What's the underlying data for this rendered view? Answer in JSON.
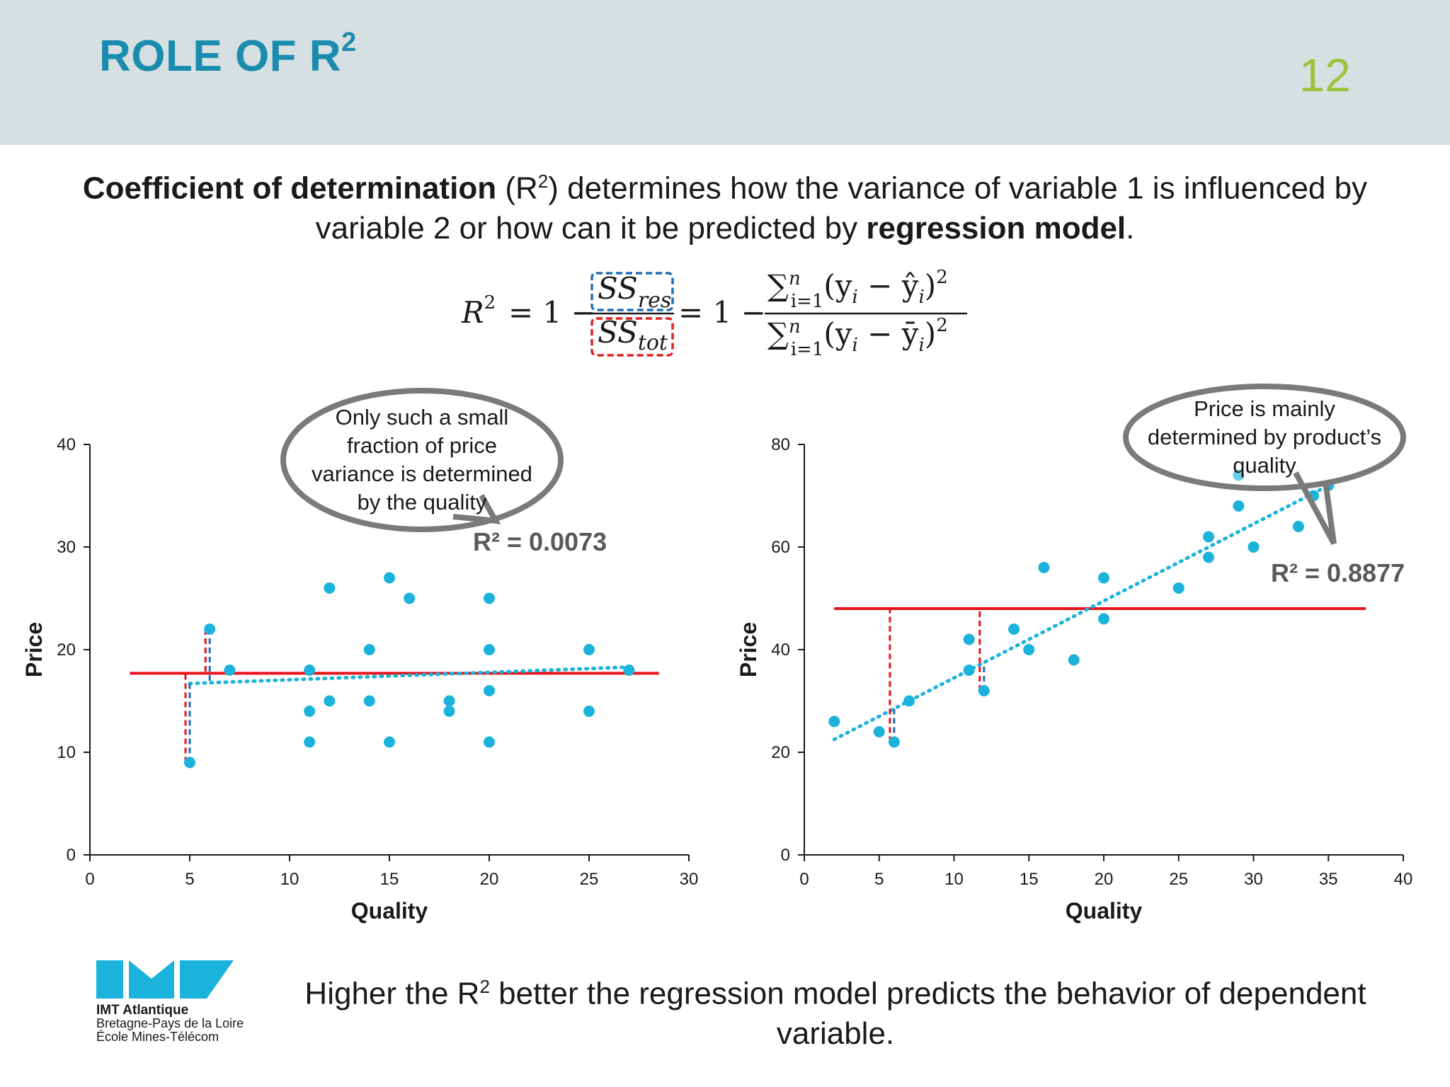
{
  "header": {
    "title": "ROLE OF R",
    "title_sup": "2",
    "slide_number": "12"
  },
  "intro": {
    "bold1": "Coefficient of determination",
    "text1": " (R",
    "sup": "2",
    "text2": ") determines how the variance of variable 1 is influenced by variable 2 or how can it be predicted by ",
    "bold2": "regression model",
    "text3": "."
  },
  "formula": {
    "lhs": "R",
    "lhs_sup": "2",
    "eq1": "= 1 −",
    "num1": "SS",
    "num1_sub": "res",
    "den1": "SS",
    "den1_sub": "tot",
    "eq2": "= 1 −",
    "num2": "∑",
    "num2_sup": "n",
    "num2_sub": "i=1",
    "num2_body": "(y",
    "num2_i": "i",
    "num2_minus": " − ŷ",
    "num2_i2": "i",
    "num2_close": ")",
    "num2_pow": "2",
    "den2": "∑",
    "den2_sup": "n",
    "den2_sub": "i=1",
    "den2_body": "(y",
    "den2_i": "i",
    "den2_minus": " − ȳ",
    "den2_i2": "i",
    "den2_close": ")",
    "den2_pow": "2",
    "colors": {
      "res": "#1f6fb5",
      "tot": "#e02020"
    }
  },
  "colors": {
    "points": "#1bb3dc",
    "mean_line": "#e8141c",
    "trend": "#1bb3dc",
    "res_dash": "#1f6fb5",
    "tot_dash": "#e8141c",
    "bubble_stroke": "#7a7a7a",
    "r2_text": "#595959"
  },
  "chart_data": [
    {
      "type": "scatter",
      "xlabel": "Quality",
      "ylabel": "Price",
      "xlim": [
        0,
        30
      ],
      "ylim": [
        0,
        40
      ],
      "xticks": [
        0,
        5,
        10,
        15,
        20,
        25,
        30
      ],
      "yticks": [
        0,
        10,
        20,
        30,
        40
      ],
      "points": [
        [
          5,
          9
        ],
        [
          6,
          22
        ],
        [
          7,
          18
        ],
        [
          11,
          18
        ],
        [
          11,
          14
        ],
        [
          11,
          11
        ],
        [
          12,
          26
        ],
        [
          12,
          15
        ],
        [
          14,
          20
        ],
        [
          14,
          15
        ],
        [
          15,
          27
        ],
        [
          15,
          11
        ],
        [
          16,
          25
        ],
        [
          18,
          15
        ],
        [
          18,
          14
        ],
        [
          20,
          25
        ],
        [
          20,
          20
        ],
        [
          20,
          16
        ],
        [
          20,
          11
        ],
        [
          25,
          20
        ],
        [
          25,
          14
        ],
        [
          27,
          18
        ]
      ],
      "mean": 17.7,
      "mean_x_range": [
        2,
        28.5
      ],
      "trend": {
        "x1": 5,
        "y1": 16.7,
        "x2": 27,
        "y2": 18.3
      },
      "r2_label": "R² = 0.0073",
      "residual_markers": [
        {
          "x": 5,
          "y": 9,
          "mean": 17.7,
          "fit": 16.7
        },
        {
          "x": 6,
          "y": 22,
          "mean": 17.7,
          "fit": 16.8
        }
      ],
      "callout": [
        "Only such a small",
        "fraction of price",
        "variance is determined",
        "by the quality"
      ]
    },
    {
      "type": "scatter",
      "xlabel": "Quality",
      "ylabel": "Price",
      "xlim": [
        0,
        40
      ],
      "ylim": [
        0,
        80
      ],
      "xticks": [
        0,
        5,
        10,
        15,
        20,
        25,
        30,
        35,
        40
      ],
      "yticks": [
        0,
        20,
        40,
        60,
        80
      ],
      "points": [
        [
          2,
          26
        ],
        [
          5,
          24
        ],
        [
          6,
          22
        ],
        [
          7,
          30
        ],
        [
          11,
          42
        ],
        [
          11,
          36
        ],
        [
          12,
          32
        ],
        [
          14,
          44
        ],
        [
          15,
          40
        ],
        [
          16,
          56
        ],
        [
          18,
          38
        ],
        [
          20,
          54
        ],
        [
          20,
          46
        ],
        [
          25,
          52
        ],
        [
          27,
          62
        ],
        [
          27,
          58
        ],
        [
          29,
          74
        ],
        [
          29,
          68
        ],
        [
          30,
          60
        ],
        [
          33,
          64
        ],
        [
          34,
          70
        ],
        [
          35,
          72
        ]
      ],
      "mean": 48,
      "mean_x_range": [
        2,
        37.5
      ],
      "trend": {
        "x1": 2,
        "y1": 22.5,
        "x2": 35,
        "y2": 72
      },
      "r2_label": "R² = 0.8877",
      "residual_markers": [
        {
          "x": 6,
          "y": 22,
          "mean": 48,
          "fit": 28.5
        },
        {
          "x": 12,
          "y": 32,
          "mean": 48,
          "fit": 37.5
        }
      ],
      "callout": [
        "Price is mainly",
        "determined by product’s",
        "quality"
      ]
    }
  ],
  "footer": {
    "text1": "Higher the R",
    "sup": "2",
    "text2": " better the regression model predicts the behavior of dependent variable."
  },
  "logo": {
    "brand": "IMT Atlantique",
    "line1": "Bretagne-Pays de la Loire",
    "line2": "École Mines-Télécom",
    "color": "#1bb3dc"
  }
}
